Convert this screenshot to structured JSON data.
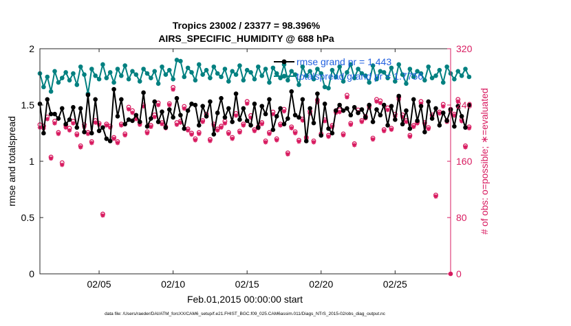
{
  "chart_data": {
    "type": "line",
    "title": "Tropics 23002 / 23377 = 98.396%",
    "subtitle": "AIRS_SPECIFIC_HUMIDITY @ 688 hPa",
    "xlabel": "Feb.01,2015 00:00:00 start",
    "ylabel_left": "rmse and totalspread",
    "ylabel_right": "# of obs: o=possible; ∗=evaluated",
    "footer": "data file: /Users/raeder/DAI/ATM_forcXX/CAM6_setup/f.e21.FHIST_BGC.f09_025.CAM6assim.011/Diags_NTrS_2015-02/obs_diag_output.nc",
    "xlim": [
      1.0,
      28.75
    ],
    "ylim_left": [
      0,
      2
    ],
    "ylim_right": [
      0,
      320
    ],
    "x_ticks": [
      5,
      10,
      15,
      20,
      25
    ],
    "x_tick_labels": [
      "02/05",
      "02/10",
      "02/15",
      "02/20",
      "02/25"
    ],
    "y_ticks_left": [
      0,
      0.5,
      1,
      1.5,
      2
    ],
    "y_tick_labels_left": [
      "0",
      "0.5",
      "1",
      "1.5",
      "2"
    ],
    "y_ticks_right": [
      0,
      80,
      160,
      240,
      320
    ],
    "y_tick_labels_right": [
      "0",
      "80",
      "160",
      "240",
      "320"
    ],
    "legend_position": "top-right",
    "series": [
      {
        "name": "rmse grand pr = 1.443",
        "color": "#000000",
        "values": [
          1.51,
          1.25,
          1.55,
          1.42,
          1.42,
          1.38,
          1.47,
          1.33,
          1.37,
          1.48,
          1.3,
          1.47,
          1.26,
          1.59,
          1.25,
          1.55,
          1.27,
          1.3,
          1.2,
          1.18,
          1.64,
          1.4,
          1.55,
          1.33,
          1.37,
          1.36,
          1.41,
          1.35,
          1.61,
          1.31,
          1.38,
          1.53,
          1.35,
          1.44,
          1.3,
          1.46,
          1.39,
          1.56,
          1.41,
          1.29,
          1.45,
          1.51,
          1.5,
          1.32,
          1.49,
          1.4,
          1.53,
          1.24,
          1.43,
          1.56,
          1.39,
          1.47,
          1.35,
          1.6,
          1.37,
          1.47,
          1.36,
          1.32,
          1.51,
          1.3,
          1.49,
          1.42,
          1.55,
          1.28,
          1.4,
          1.47,
          1.33,
          1.38,
          1.62,
          1.41,
          1.39,
          1.55,
          1.18,
          1.47,
          1.34,
          1.6,
          1.23,
          1.51,
          1.29,
          1.25,
          1.45,
          1.5,
          1.45,
          1.47,
          1.41,
          1.48,
          1.43,
          1.46,
          1.39,
          1.5,
          1.35,
          1.46,
          1.41,
          1.5,
          1.32,
          1.49,
          1.37,
          1.58,
          1.33,
          1.45,
          1.29,
          1.55,
          1.36,
          1.49,
          1.26,
          1.53,
          1.38,
          1.47,
          1.32,
          1.43,
          1.36,
          1.46,
          1.31,
          1.49,
          1.4,
          1.3,
          1.5
        ]
      },
      {
        "name": "totalspread grand pr = 1.7756",
        "color": "#008080",
        "values": [
          1.78,
          1.66,
          1.75,
          1.62,
          1.8,
          1.7,
          1.74,
          1.79,
          1.72,
          1.78,
          1.68,
          1.84,
          1.77,
          1.6,
          1.82,
          1.76,
          1.73,
          1.86,
          1.74,
          1.79,
          1.7,
          1.82,
          1.76,
          1.85,
          1.73,
          1.8,
          1.77,
          1.71,
          1.82,
          1.78,
          1.74,
          1.8,
          1.69,
          1.84,
          1.77,
          1.81,
          1.73,
          1.9,
          1.89,
          1.75,
          1.83,
          1.79,
          1.72,
          1.86,
          1.77,
          1.81,
          1.74,
          1.84,
          1.78,
          1.75,
          1.82,
          1.71,
          1.8,
          1.77,
          1.85,
          1.72,
          1.81,
          1.79,
          1.73,
          1.84,
          1.76,
          1.82,
          1.7,
          1.83,
          1.78,
          1.74,
          1.86,
          1.72,
          1.8,
          1.77,
          1.68,
          1.84,
          1.76,
          1.8,
          1.73,
          1.82,
          1.78,
          1.66,
          1.65,
          1.81,
          1.75,
          1.84,
          1.71,
          1.79,
          1.86,
          1.74,
          1.82,
          1.78,
          1.76,
          1.7,
          1.85,
          1.73,
          1.8,
          1.79,
          1.74,
          1.83,
          1.71,
          1.86,
          1.77,
          1.69,
          1.82,
          1.75,
          1.8,
          1.78,
          1.72,
          1.84,
          1.74,
          1.76,
          1.81,
          1.7,
          1.84,
          1.78,
          1.73,
          1.8,
          1.76,
          1.82,
          1.75
        ]
      },
      {
        "name": "obs possible",
        "color": "#d81b60",
        "marker": "o",
        "axis": "right",
        "values": [
          212,
          210,
          223,
          166,
          217,
          201,
          158,
          211,
          207,
          217,
          199,
          182,
          212,
          201,
          188,
          218,
          214,
          85,
          213,
          210,
          194,
          188,
          213,
          199,
          237,
          232,
          222,
          215,
          240,
          202,
          211,
          226,
          243,
          215,
          209,
          242,
          265,
          215,
          217,
          238,
          206,
          200,
          192,
          201,
          218,
          227,
          191,
          213,
          206,
          210,
          217,
          201,
          194,
          228,
          203,
          213,
          245,
          225,
          205,
          209,
          215,
          189,
          201,
          230,
          192,
          213,
          234,
          172,
          209,
          202,
          190,
          220,
          194,
          231,
          189,
          247,
          199,
          219,
          197,
          211,
          232,
          233,
          199,
          254,
          214,
          185,
          233,
          218,
          224,
          239,
          193,
          248,
          246,
          205,
          236,
          207,
          227,
          251,
          226,
          218,
          197,
          211,
          216,
          245,
          215,
          208,
          226,
          112,
          230,
          241,
          218,
          234,
          227,
          248,
          219,
          182,
          209
        ]
      },
      {
        "name": "obs evaluated",
        "color": "#d81b60",
        "marker": "*",
        "axis": "right",
        "values": [
          208,
          207,
          220,
          164,
          214,
          199,
          155,
          208,
          204,
          214,
          197,
          180,
          209,
          199,
          186,
          215,
          212,
          83,
          211,
          208,
          192,
          186,
          211,
          197,
          234,
          229,
          220,
          212,
          238,
          200,
          209,
          223,
          240,
          213,
          207,
          240,
          262,
          212,
          215,
          235,
          204,
          198,
          190,
          199,
          216,
          224,
          189,
          211,
          204,
          208,
          214,
          199,
          192,
          225,
          201,
          211,
          242,
          222,
          203,
          207,
          213,
          187,
          199,
          227,
          190,
          211,
          231,
          170,
          207,
          200,
          188,
          218,
          192,
          228,
          187,
          244,
          197,
          217,
          195,
          209,
          229,
          230,
          197,
          251,
          212,
          183,
          230,
          216,
          221,
          236,
          191,
          245,
          243,
          203,
          233,
          205,
          224,
          248,
          223,
          216,
          195,
          209,
          214,
          242,
          213,
          206,
          224,
          110,
          228,
          238,
          216,
          231,
          225,
          245,
          217,
          180,
          207
        ]
      }
    ]
  }
}
